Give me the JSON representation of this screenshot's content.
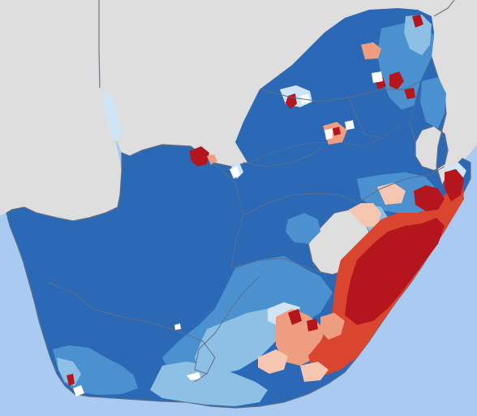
{
  "map": {
    "subject": "choropleth",
    "colors": {
      "ocean": "#a9cbf2",
      "neighbour_land": "#dedede",
      "border": "#6e7781",
      "province_border": "#5d6f86",
      "dark_blue": "#2b68b5",
      "mid_blue": "#4b90cf",
      "light_blue": "#8ec0e6",
      "pale_blue": "#cfe4f4",
      "pale_red": "#f6c6b1",
      "salmon": "#ee9d80",
      "red": "#d9452f",
      "dark_red": "#b5161e",
      "white": "#ffffff"
    }
  }
}
